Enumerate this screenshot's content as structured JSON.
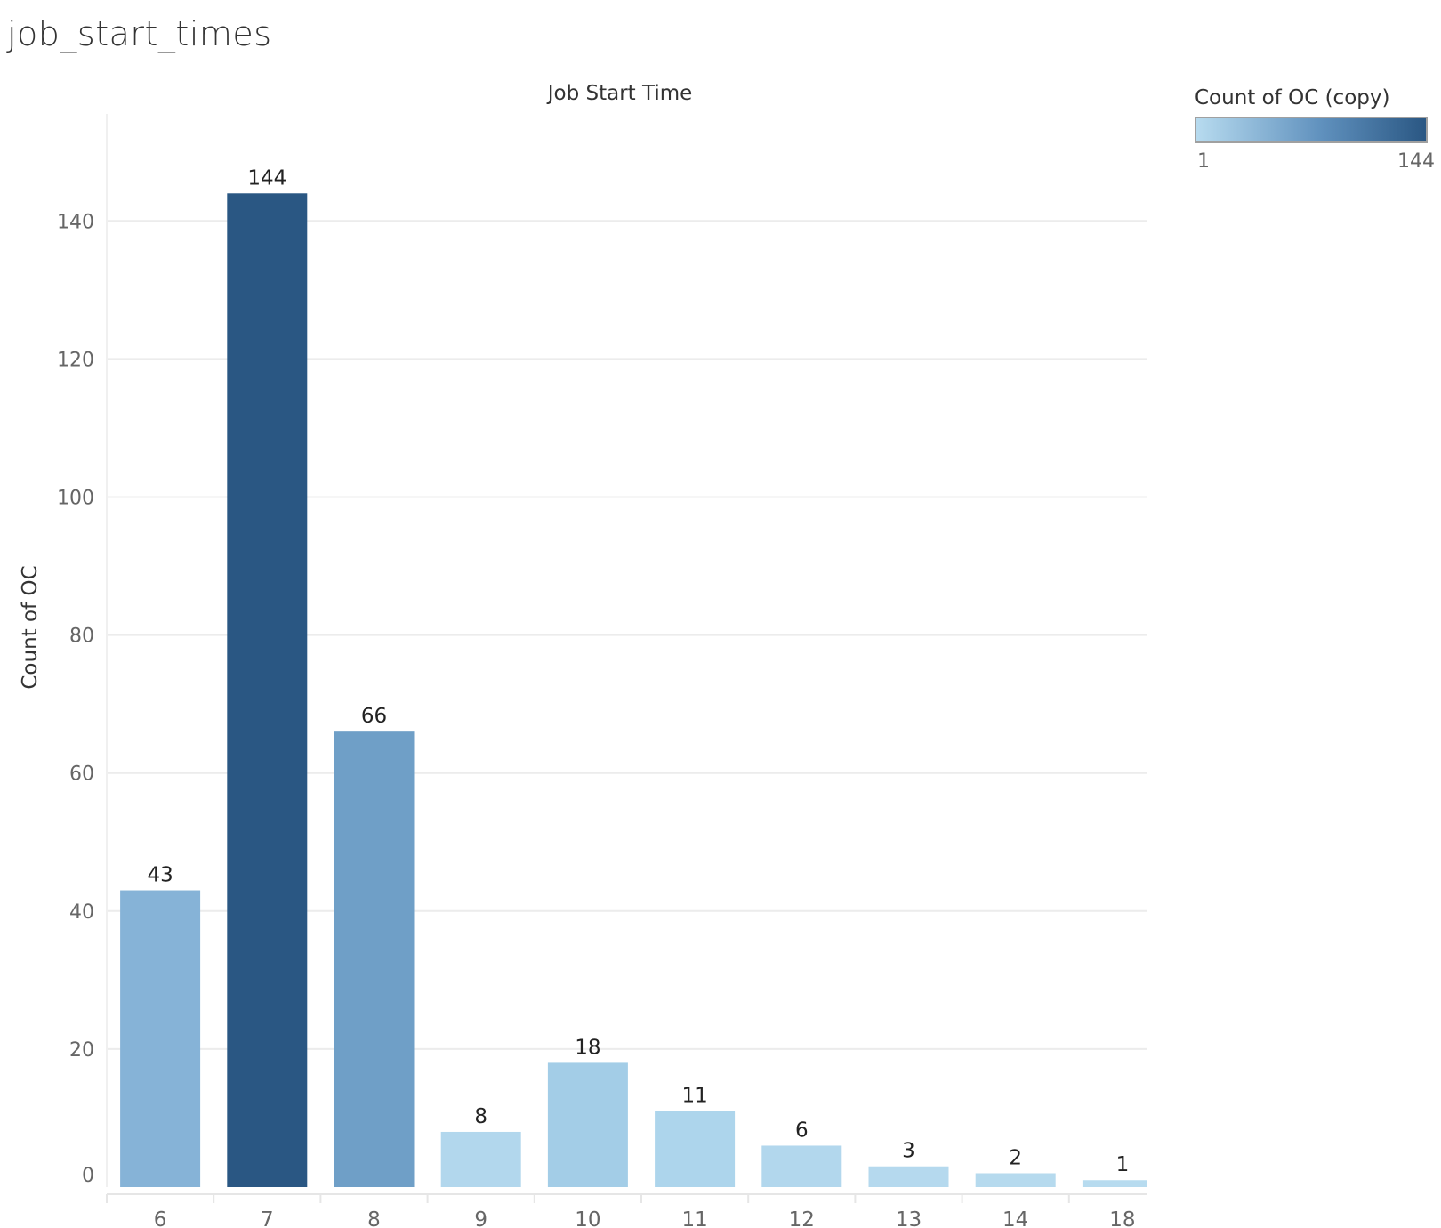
{
  "sheet": {
    "title": "job_start_times"
  },
  "legend": {
    "title": "Count of OC (copy)",
    "min_label": "1",
    "max_label": "144",
    "color_low": "#b7dbef",
    "color_high": "#2a5783"
  },
  "chart_data": {
    "type": "bar",
    "title": "Job Start Time",
    "xlabel": "",
    "ylabel": "Count of OC",
    "categories": [
      "6",
      "7",
      "8",
      "9",
      "10",
      "11",
      "12",
      "13",
      "14",
      "18"
    ],
    "values": [
      43,
      144,
      66,
      8,
      18,
      11,
      6,
      3,
      2,
      1
    ],
    "data_labels": [
      "43",
      "144",
      "66",
      "8",
      "18",
      "11",
      "6",
      "3",
      "2",
      "1"
    ],
    "ylim": [
      0,
      155
    ],
    "yticks": [
      0,
      20,
      40,
      60,
      80,
      100,
      120,
      140
    ],
    "grid": true,
    "legend_position": "top-right",
    "color_scale": "continuous-blue",
    "bar_colors": [
      "#86b3d7",
      "#2a5783",
      "#6f9fc7",
      "#b2d7ed",
      "#a3cde7",
      "#add5ec",
      "#b2d7ed",
      "#b5d9ee",
      "#b6daee",
      "#b7dbef"
    ]
  }
}
